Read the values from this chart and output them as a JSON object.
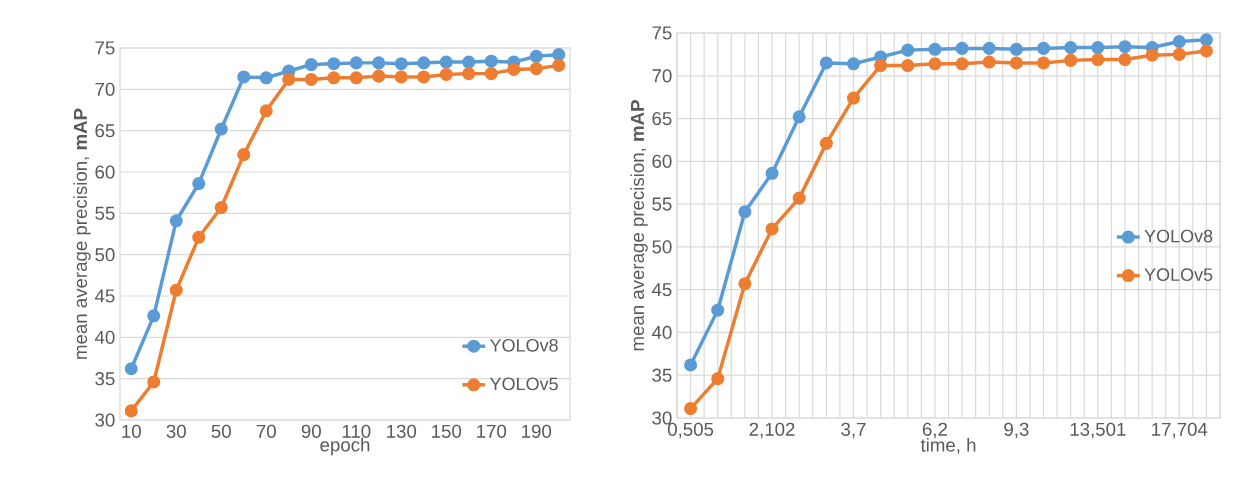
{
  "chart_data": [
    {
      "type": "line",
      "xlabel": "epoch",
      "ylabel": "mean average precision, **mAP**",
      "categories": [
        "10",
        null,
        "30",
        null,
        "50",
        null,
        "70",
        null,
        "90",
        null,
        "110",
        null,
        "130",
        null,
        "150",
        null,
        "170",
        null,
        "190",
        null
      ],
      "series": [
        {
          "name": "YOLOv8",
          "color": "#5b9bd5",
          "values": [
            36.2,
            42.6,
            54.1,
            58.6,
            65.2,
            71.5,
            71.4,
            72.2,
            73.0,
            73.1,
            73.2,
            73.2,
            73.1,
            73.2,
            73.3,
            73.3,
            73.4,
            73.3,
            74.0,
            74.2
          ]
        },
        {
          "name": "YOLOv5",
          "color": "#ed7d31",
          "values": [
            31.1,
            34.6,
            45.7,
            52.1,
            55.7,
            62.1,
            67.4,
            71.2,
            71.2,
            71.4,
            71.4,
            71.6,
            71.5,
            71.5,
            71.8,
            71.9,
            71.9,
            72.4,
            72.5,
            72.9
          ]
        }
      ],
      "ylim": [
        30,
        75
      ],
      "yticks": [
        30,
        35,
        40,
        45,
        50,
        55,
        60,
        65,
        70,
        75
      ],
      "grid": "y",
      "legend": "bottom right",
      "marker": "circle",
      "line_style": "solid"
    },
    {
      "type": "line",
      "xlabel": "time, h",
      "ylabel": "mean average precision, **mAP**",
      "categories": [
        "0,505",
        null,
        null,
        "2,102",
        null,
        null,
        "3,7",
        null,
        null,
        "6,2",
        null,
        null,
        "9,3",
        null,
        null,
        "13,501",
        null,
        null,
        "17,704",
        null
      ],
      "series": [
        {
          "name": "YOLOv8",
          "color": "#5b9bd5",
          "values": [
            36.2,
            42.6,
            54.1,
            58.6,
            65.2,
            71.5,
            71.4,
            72.2,
            73.0,
            73.1,
            73.2,
            73.2,
            73.1,
            73.2,
            73.3,
            73.3,
            73.4,
            73.3,
            74.0,
            74.2
          ]
        },
        {
          "name": "YOLOv5",
          "color": "#ed7d31",
          "values": [
            31.1,
            34.6,
            45.7,
            52.1,
            55.7,
            62.1,
            67.4,
            71.2,
            71.2,
            71.4,
            71.4,
            71.6,
            71.5,
            71.5,
            71.8,
            71.9,
            71.9,
            72.4,
            72.5,
            72.9
          ]
        }
      ],
      "ylim": [
        30,
        75
      ],
      "yticks": [
        30,
        35,
        40,
        45,
        50,
        55,
        60,
        65,
        70,
        75
      ],
      "grid": true,
      "legend": "right",
      "marker": "circle",
      "line_style": "solid"
    }
  ]
}
